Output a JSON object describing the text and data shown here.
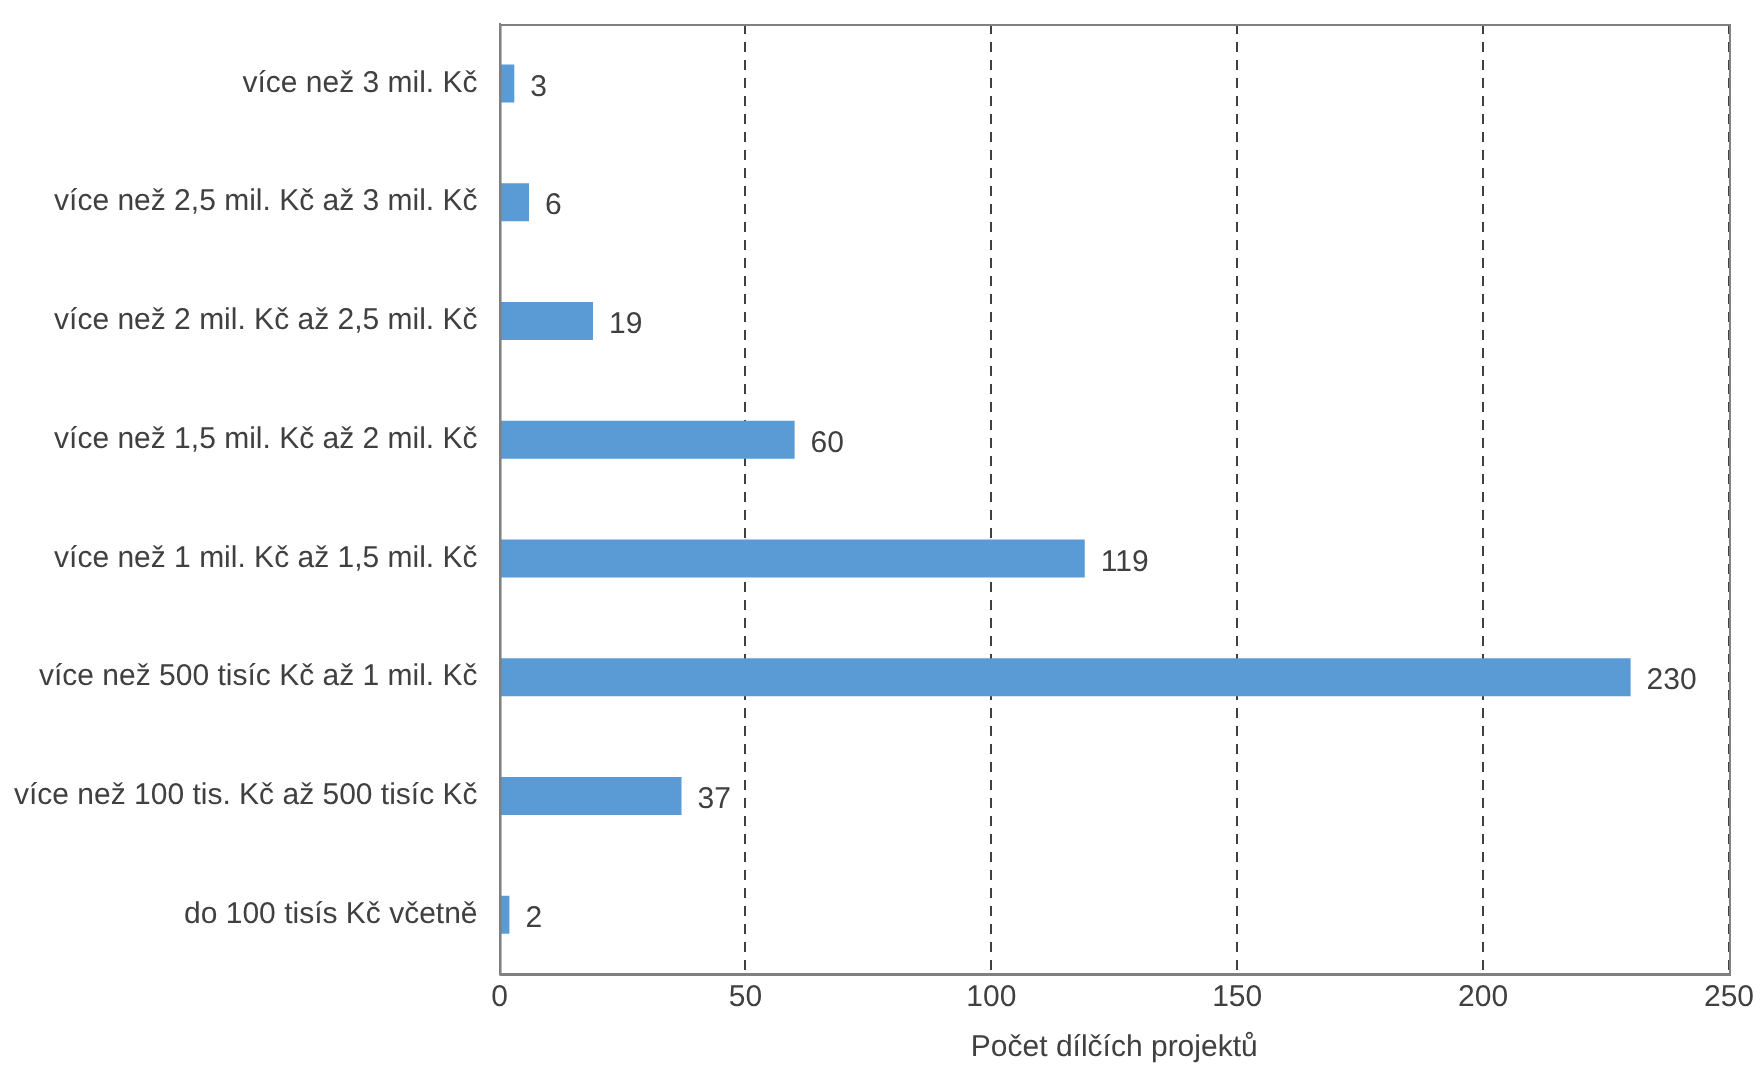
{
  "chart_data": {
    "type": "bar",
    "orientation": "horizontal",
    "xlabel": "Počet dílčích projektů",
    "categories": [
      "více než 3 mil. Kč",
      "více než 2,5 mil. Kč až 3 mil. Kč",
      "více než 2 mil. Kč až 2,5 mil. Kč",
      "více než 1,5 mil. Kč až 2 mil. Kč",
      "více než 1 mil. Kč až 1,5 mil. Kč",
      "více než 500 tisíc Kč až 1 mil. Kč",
      "více než 100 tis. Kč až 500 tisíc Kč",
      "do 100 tisís Kč včetně"
    ],
    "values": [
      3,
      6,
      19,
      60,
      119,
      230,
      37,
      2
    ],
    "color": "#5b9bd5",
    "xlim": [
      0,
      250
    ],
    "xticks": [
      0,
      50,
      100,
      150,
      200,
      250
    ],
    "grid": "x",
    "data_labels": true
  }
}
